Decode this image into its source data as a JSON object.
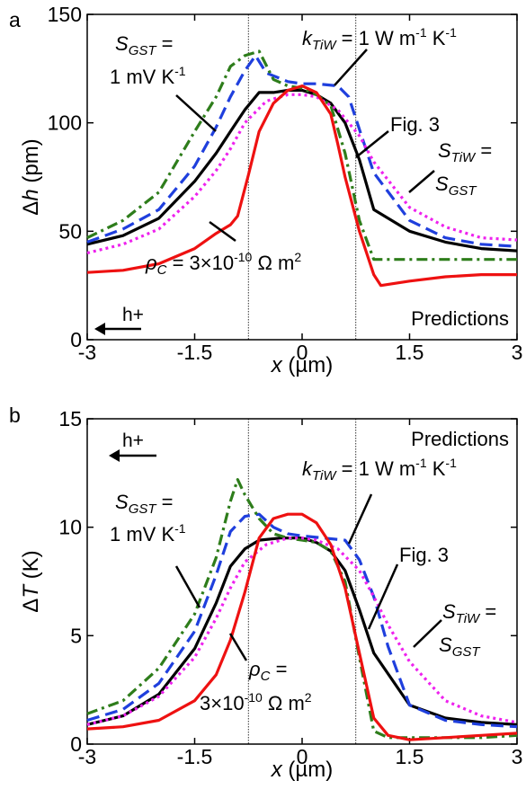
{
  "chart_data": [
    {
      "type": "line",
      "panel_label": "a",
      "ylim": [
        0,
        150
      ],
      "xlim": [
        -3,
        3
      ],
      "x_ticks": [
        "-3",
        "-1.5",
        "0",
        "1.5",
        "3"
      ],
      "y_ticks": [
        "0",
        "50",
        "100",
        "150"
      ],
      "y_tick_values": [
        0,
        50,
        100,
        150
      ],
      "ylabel": {
        "delta": "Δ",
        "var": "h",
        "unit": " (pm)"
      },
      "xlabel": {
        "var": "x",
        "unit": " (µm)"
      },
      "vlines": [
        -0.75,
        0.75
      ],
      "watermark": "Predictions",
      "arrow_label": "h+",
      "annotations": {
        "sgst": {
          "sym": "S",
          "sub": "GST",
          "eq": " =",
          "line2": "1 mV K",
          "sup": "-1"
        },
        "ktiw": {
          "sym": "k",
          "sub": "TiW",
          "eq": " = 1 W m",
          "sup1": "-1",
          "mid": " K",
          "sup2": "-1"
        },
        "fig3": "Fig. 3",
        "stiw": {
          "sym": "S",
          "sub": "TiW",
          "eq": " =",
          "sym2": "S",
          "sub2": "GST"
        },
        "rhoc": {
          "sym": "ρ",
          "sub": "C",
          "eq": " =  3×10",
          "sup": "-10",
          "unit": " Ω m",
          "sup2": "2"
        }
      },
      "series": [
        {
          "key": "fig3",
          "color": "#000000",
          "dash": "solid",
          "x": [
            -3,
            -2.5,
            -2.0,
            -1.5,
            -1.2,
            -1.0,
            -0.8,
            -0.6,
            -0.4,
            -0.2,
            0,
            0.2,
            0.4,
            0.6,
            0.8,
            1.0,
            1.5,
            2.0,
            2.5,
            3
          ],
          "y": [
            44,
            48,
            56,
            73,
            86,
            96,
            106,
            114,
            114,
            115,
            115,
            113,
            109,
            100,
            83,
            60,
            50,
            45,
            42,
            41
          ]
        },
        {
          "key": "ktiw",
          "color": "#1f3fdd",
          "dash": "dashed",
          "x": [
            -3,
            -2.5,
            -2.0,
            -1.5,
            -1.2,
            -1.0,
            -0.8,
            -0.65,
            -0.5,
            -0.2,
            0,
            0.2,
            0.5,
            0.65,
            0.8,
            1.0,
            1.5,
            2.0,
            2.5,
            3
          ],
          "y": [
            45,
            51,
            60,
            80,
            98,
            112,
            124,
            131,
            123,
            119,
            118,
            118,
            117,
            112,
            97,
            77,
            55,
            47,
            44,
            43
          ]
        },
        {
          "key": "sgst",
          "color": "#2e7d1b",
          "dash": "dashdot",
          "x": [
            -3,
            -2.5,
            -2.0,
            -1.5,
            -1.2,
            -1.0,
            -0.8,
            -0.6,
            -0.4,
            -0.2,
            0,
            0.2,
            0.4,
            0.6,
            0.8,
            1.0,
            1.5,
            2.0,
            2.5,
            3
          ],
          "y": [
            47,
            55,
            68,
            96,
            112,
            126,
            131,
            133,
            120,
            117,
            116,
            113,
            108,
            86,
            55,
            37,
            37,
            37,
            37,
            37
          ]
        },
        {
          "key": "stiw",
          "color": "#ee22ee",
          "dash": "dotted",
          "x": [
            -3,
            -2.5,
            -2.0,
            -1.5,
            -1.2,
            -1.0,
            -0.8,
            -0.5,
            -0.2,
            0,
            0.2,
            0.5,
            0.8,
            1.0,
            1.5,
            2.0,
            2.5,
            3
          ],
          "y": [
            40,
            44,
            51,
            66,
            78,
            88,
            100,
            110,
            113,
            113,
            112,
            106,
            94,
            82,
            61,
            52,
            47,
            46
          ]
        },
        {
          "key": "rhoc",
          "color": "#ee1111",
          "dash": "solid",
          "x": [
            -3,
            -2.5,
            -2.0,
            -1.5,
            -1.2,
            -1.0,
            -0.9,
            -0.75,
            -0.6,
            -0.4,
            -0.2,
            0,
            0.2,
            0.4,
            0.5,
            0.6,
            0.8,
            1.0,
            1.1,
            1.5,
            2.0,
            2.5,
            3
          ],
          "y": [
            31,
            32,
            35,
            42,
            49,
            53,
            57,
            76,
            96,
            109,
            115,
            117,
            114,
            104,
            90,
            75,
            50,
            30,
            25,
            27,
            29,
            30,
            30
          ]
        }
      ]
    },
    {
      "type": "line",
      "panel_label": "b",
      "ylim": [
        0,
        15
      ],
      "xlim": [
        -3,
        3
      ],
      "x_ticks": [
        "-3",
        "-1.5",
        "0",
        "1.5",
        "3"
      ],
      "y_ticks": [
        "0",
        "5",
        "10",
        "15"
      ],
      "y_tick_values": [
        0,
        5,
        10,
        15
      ],
      "ylabel": {
        "delta": "Δ",
        "var": "T",
        "unit": " (K)"
      },
      "xlabel": {
        "var": "x",
        "unit": " (µm)"
      },
      "vlines": [
        -0.75,
        0.75
      ],
      "watermark": "Predictions",
      "arrow_label": "h+",
      "annotations": {
        "sgst": {
          "sym": "S",
          "sub": "GST",
          "eq": " =",
          "line2": "1 mV K",
          "sup": "-1"
        },
        "ktiw": {
          "sym": "k",
          "sub": "TiW",
          "eq": " = 1 W m",
          "sup1": "-1",
          "mid": " K",
          "sup2": "-1"
        },
        "fig3": "Fig. 3",
        "stiw": {
          "sym": "S",
          "sub": "TiW",
          "eq": " =",
          "sym2": "S",
          "sub2": "GST"
        },
        "rhoc": {
          "sym": "ρ",
          "sub": "C",
          "eq": " =",
          "line2": "3×10",
          "sup": "-10",
          "unit": " Ω m",
          "sup2": "2"
        }
      },
      "series": [
        {
          "key": "fig3",
          "color": "#000000",
          "dash": "solid",
          "x": [
            -3,
            -2.5,
            -2.0,
            -1.5,
            -1.2,
            -1.0,
            -0.8,
            -0.6,
            -0.3,
            0,
            0.2,
            0.4,
            0.6,
            0.8,
            1.0,
            1.5,
            2.0,
            2.5,
            3
          ],
          "y": [
            0.9,
            1.3,
            2.3,
            4.4,
            6.5,
            8.2,
            9.0,
            9.4,
            9.5,
            9.5,
            9.3,
            8.9,
            8.0,
            6.2,
            4.2,
            1.8,
            1.2,
            1.0,
            0.9
          ]
        },
        {
          "key": "ktiw",
          "color": "#1f3fdd",
          "dash": "dashed",
          "x": [
            -3,
            -2.5,
            -2.0,
            -1.5,
            -1.2,
            -1.0,
            -0.8,
            -0.6,
            -0.4,
            -0.2,
            0,
            0.3,
            0.6,
            0.8,
            1.0,
            1.2,
            1.5,
            2.0,
            2.5,
            3
          ],
          "y": [
            1.1,
            1.6,
            2.8,
            5.2,
            7.8,
            9.8,
            10.5,
            10.6,
            10.0,
            9.7,
            9.6,
            9.5,
            9.4,
            8.5,
            6.8,
            4.5,
            1.8,
            1.1,
            0.9,
            0.8
          ]
        },
        {
          "key": "sgst",
          "color": "#2e7d1b",
          "dash": "dashdot",
          "x": [
            -3,
            -2.5,
            -2.0,
            -1.5,
            -1.2,
            -1.0,
            -0.9,
            -0.8,
            -0.6,
            -0.4,
            -0.2,
            0,
            0.2,
            0.4,
            0.6,
            0.8,
            1.0,
            1.2,
            1.5,
            2.0,
            2.5,
            3
          ],
          "y": [
            1.4,
            2.0,
            3.5,
            6.0,
            8.6,
            11.2,
            12.2,
            11.5,
            10.4,
            9.7,
            9.5,
            9.4,
            9.3,
            8.9,
            7.5,
            4.0,
            0.6,
            0.3,
            0.3,
            0.3,
            0.3,
            0.4
          ]
        },
        {
          "key": "stiw",
          "color": "#ee22ee",
          "dash": "dotted",
          "x": [
            -3,
            -2.5,
            -2.0,
            -1.5,
            -1.2,
            -1.0,
            -0.8,
            -0.5,
            -0.2,
            0,
            0.2,
            0.5,
            0.8,
            1.0,
            1.2,
            1.5,
            2.0,
            2.5,
            3
          ],
          "y": [
            0.9,
            1.3,
            2.2,
            4.0,
            5.8,
            7.2,
            8.4,
            9.2,
            9.5,
            9.5,
            9.4,
            9.0,
            8.0,
            6.8,
            5.5,
            3.8,
            2.0,
            1.3,
            1.0
          ]
        },
        {
          "key": "rhoc",
          "color": "#ee1111",
          "dash": "solid",
          "x": [
            -3,
            -2.5,
            -2.0,
            -1.5,
            -1.2,
            -1.0,
            -0.8,
            -0.6,
            -0.4,
            -0.2,
            0,
            0.2,
            0.4,
            0.6,
            0.8,
            1.0,
            1.2,
            1.5,
            2.0,
            2.5,
            3
          ],
          "y": [
            0.7,
            0.8,
            1.1,
            2.0,
            3.2,
            4.8,
            7.0,
            9.5,
            10.4,
            10.6,
            10.6,
            10.2,
            9.2,
            7.2,
            4.2,
            1.2,
            0.4,
            0.2,
            0.3,
            0.4,
            0.5
          ]
        }
      ]
    }
  ]
}
